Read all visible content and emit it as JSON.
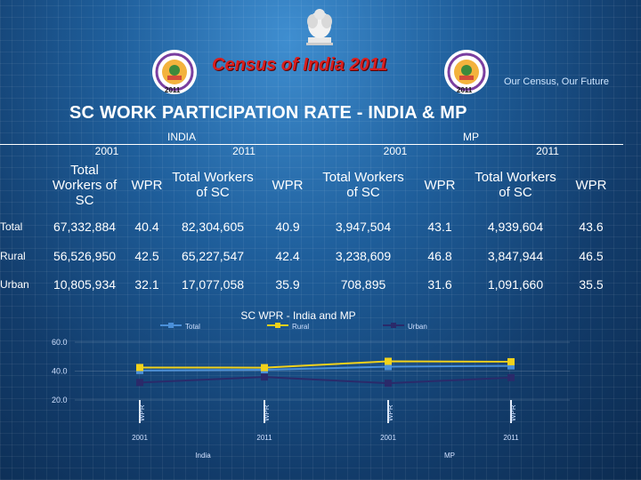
{
  "header": {
    "census_title": "Census of India 2011",
    "tagline": "Our Census,  Our Future",
    "logo_year": "2011",
    "main_title": "SC WORK PARTICIPATION RATE - INDIA & MP"
  },
  "table": {
    "region_india": "INDIA",
    "region_mp": "MP",
    "year_2001": "2001",
    "year_2011": "2011",
    "col_total_workers": "Total Workers of SC",
    "col_wpr": "WPR",
    "rows": [
      {
        "label": "Total",
        "india_2001_workers": "67,332,884",
        "india_2001_wpr": "40.4",
        "india_2011_workers": "82,304,605",
        "india_2011_wpr": "40.9",
        "mp_2001_workers": "3,947,504",
        "mp_2001_wpr": "43.1",
        "mp_2011_workers": "4,939,604",
        "mp_2011_wpr": "43.6"
      },
      {
        "label": "Rural",
        "india_2001_workers": "56,526,950",
        "india_2001_wpr": "42.5",
        "india_2011_workers": "65,227,547",
        "india_2011_wpr": "42.4",
        "mp_2001_workers": "3,238,609",
        "mp_2001_wpr": "46.8",
        "mp_2011_workers": "3,847,944",
        "mp_2011_wpr": "46.5"
      },
      {
        "label": "Urban",
        "india_2001_workers": "10,805,934",
        "india_2001_wpr": "32.1",
        "india_2011_workers": "17,077,058",
        "india_2011_wpr": "35.9",
        "mp_2001_workers": "708,895",
        "mp_2001_wpr": "31.6",
        "mp_2011_workers": "1,091,660",
        "mp_2011_wpr": "35.5"
      }
    ]
  },
  "chart_data": {
    "type": "line",
    "title": "SC WPR - India and MP",
    "categories": [
      "2001",
      "2011",
      "2001",
      "2011"
    ],
    "group_labels": [
      "India",
      "MP"
    ],
    "bar_label": "WPR",
    "series": [
      {
        "name": "Total",
        "values": [
          40.4,
          40.9,
          43.1,
          43.6
        ],
        "color": "#4a8fd8"
      },
      {
        "name": "Rural",
        "values": [
          42.5,
          42.4,
          46.8,
          46.5
        ],
        "color": "#f2d21b"
      },
      {
        "name": "Urban",
        "values": [
          32.1,
          35.9,
          31.6,
          35.5
        ],
        "color": "#2a2a6a"
      }
    ],
    "yticks": [
      "20.0",
      "40.0",
      "60.0"
    ],
    "ylim": [
      20,
      60
    ],
    "legend_position": "top"
  }
}
